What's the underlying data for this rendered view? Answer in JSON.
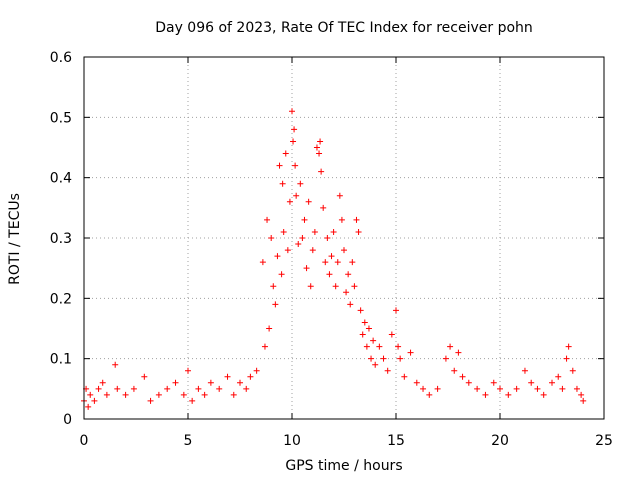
{
  "chart_data": {
    "type": "scatter",
    "title": "Day 096 of 2023, Rate Of TEC Index for receiver pohn",
    "xlabel": "GPS time / hours",
    "ylabel": "ROTI / TECUs",
    "xlim": [
      0,
      25
    ],
    "ylim": [
      0,
      0.6
    ],
    "xticks": [
      0,
      5,
      10,
      15,
      20,
      25
    ],
    "yticks": [
      0,
      0.1,
      0.2,
      0.3,
      0.4,
      0.5,
      0.6
    ],
    "xtick_labels": [
      "0",
      "5",
      "10",
      "15",
      "20",
      "25"
    ],
    "ytick_labels": [
      "0",
      "0.1",
      "0.2",
      "0.3",
      "0.4",
      "0.5",
      "0.6"
    ],
    "grid": true,
    "marker": "+",
    "color": "#ff0000",
    "series": [
      {
        "name": "ROTI",
        "x": [
          0.0,
          0.1,
          0.2,
          0.3,
          0.5,
          0.7,
          0.9,
          1.1,
          1.5,
          1.6,
          2.0,
          2.4,
          2.9,
          3.2,
          3.6,
          4.0,
          4.4,
          4.8,
          5.0,
          5.2,
          5.5,
          5.8,
          6.1,
          6.5,
          6.9,
          7.2,
          7.5,
          7.8,
          8.0,
          8.3,
          8.6,
          8.7,
          8.8,
          8.9,
          9.0,
          9.1,
          9.2,
          9.3,
          9.4,
          9.5,
          9.55,
          9.6,
          9.7,
          9.8,
          9.9,
          10.0,
          10.05,
          10.1,
          10.15,
          10.2,
          10.3,
          10.4,
          10.5,
          10.6,
          10.7,
          10.8,
          10.9,
          11.0,
          11.1,
          11.2,
          11.3,
          11.35,
          11.4,
          11.5,
          11.6,
          11.7,
          11.8,
          11.9,
          12.0,
          12.1,
          12.2,
          12.3,
          12.4,
          12.5,
          12.6,
          12.7,
          12.8,
          12.9,
          13.0,
          13.1,
          13.2,
          13.3,
          13.4,
          13.5,
          13.6,
          13.7,
          13.8,
          13.9,
          14.0,
          14.2,
          14.4,
          14.6,
          14.8,
          15.0,
          15.1,
          15.2,
          15.4,
          15.7,
          16.0,
          16.3,
          16.6,
          17.0,
          17.4,
          17.6,
          17.8,
          18.0,
          18.2,
          18.5,
          18.9,
          19.3,
          19.7,
          20.0,
          20.4,
          20.8,
          21.2,
          21.5,
          21.8,
          22.1,
          22.5,
          22.8,
          23.0,
          23.2,
          23.3,
          23.5,
          23.7,
          23.9,
          24.0
        ],
        "y": [
          0.03,
          0.05,
          0.02,
          0.04,
          0.03,
          0.05,
          0.06,
          0.04,
          0.09,
          0.05,
          0.04,
          0.05,
          0.07,
          0.03,
          0.04,
          0.05,
          0.06,
          0.04,
          0.08,
          0.03,
          0.05,
          0.04,
          0.06,
          0.05,
          0.07,
          0.04,
          0.06,
          0.05,
          0.07,
          0.08,
          0.26,
          0.12,
          0.33,
          0.15,
          0.3,
          0.22,
          0.19,
          0.27,
          0.42,
          0.24,
          0.39,
          0.31,
          0.44,
          0.28,
          0.36,
          0.51,
          0.46,
          0.48,
          0.42,
          0.37,
          0.29,
          0.39,
          0.3,
          0.33,
          0.25,
          0.36,
          0.22,
          0.28,
          0.31,
          0.45,
          0.44,
          0.46,
          0.41,
          0.35,
          0.26,
          0.3,
          0.24,
          0.27,
          0.31,
          0.22,
          0.26,
          0.37,
          0.33,
          0.28,
          0.21,
          0.24,
          0.19,
          0.26,
          0.22,
          0.33,
          0.31,
          0.18,
          0.14,
          0.16,
          0.12,
          0.15,
          0.1,
          0.13,
          0.09,
          0.12,
          0.1,
          0.08,
          0.14,
          0.18,
          0.12,
          0.1,
          0.07,
          0.11,
          0.06,
          0.05,
          0.04,
          0.05,
          0.1,
          0.12,
          0.08,
          0.11,
          0.07,
          0.06,
          0.05,
          0.04,
          0.06,
          0.05,
          0.04,
          0.05,
          0.08,
          0.06,
          0.05,
          0.04,
          0.06,
          0.07,
          0.05,
          0.1,
          0.12,
          0.08,
          0.05,
          0.04,
          0.03
        ]
      }
    ]
  }
}
